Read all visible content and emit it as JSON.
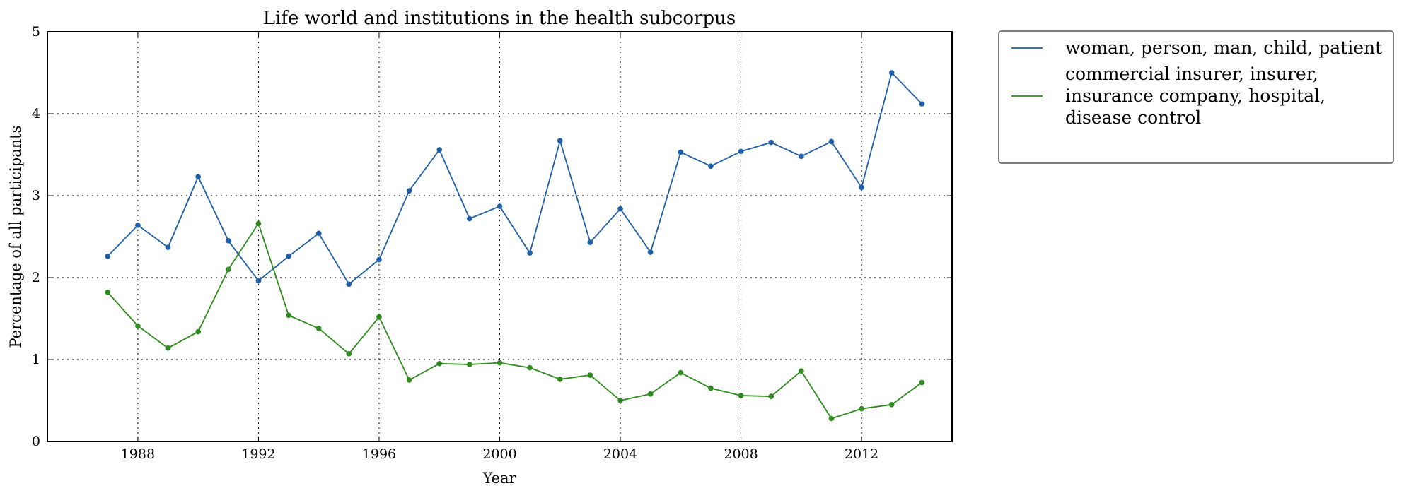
{
  "chart_data": {
    "type": "line",
    "title": "Life world and institutions in the health subcorpus",
    "xlabel": "Year",
    "ylabel": "Percentage of all participants",
    "xlim": [
      1985,
      2015
    ],
    "ylim": [
      0,
      5
    ],
    "xticks": [
      1988,
      1992,
      1996,
      2000,
      2004,
      2008,
      2012
    ],
    "yticks": [
      0,
      1,
      2,
      3,
      4,
      5
    ],
    "grid": true,
    "legend_position": "outside-right",
    "x": [
      1987,
      1988,
      1989,
      1990,
      1991,
      1992,
      1993,
      1994,
      1995,
      1996,
      1997,
      1998,
      1999,
      2000,
      2001,
      2002,
      2003,
      2004,
      2005,
      2006,
      2007,
      2008,
      2009,
      2010,
      2011,
      2012,
      2013,
      2014
    ],
    "series": [
      {
        "name": "woman, person, man, child, patient",
        "name_lines": [
          "woman, person, man, child, patient"
        ],
        "color": "#1f5fa8",
        "values": [
          2.26,
          2.64,
          2.37,
          3.23,
          2.45,
          1.96,
          2.26,
          2.54,
          1.92,
          2.22,
          3.06,
          3.56,
          2.72,
          2.87,
          2.3,
          3.67,
          2.43,
          2.84,
          2.31,
          3.53,
          3.36,
          3.54,
          3.65,
          3.48,
          3.66,
          3.1,
          4.5,
          4.12
        ]
      },
      {
        "name": "commercial insurer, insurer, insurance company, hospital, disease control",
        "name_lines": [
          "commercial insurer, insurer,",
          "insurance company, hospital,",
          "disease control"
        ],
        "color": "#2e8b1e",
        "values": [
          1.82,
          1.41,
          1.14,
          1.34,
          2.1,
          2.66,
          1.54,
          1.38,
          1.07,
          1.52,
          0.75,
          0.95,
          0.94,
          0.96,
          0.9,
          0.76,
          0.81,
          0.5,
          0.58,
          0.84,
          0.65,
          0.56,
          0.55,
          0.86,
          0.28,
          0.4,
          0.45,
          0.72
        ]
      }
    ]
  }
}
